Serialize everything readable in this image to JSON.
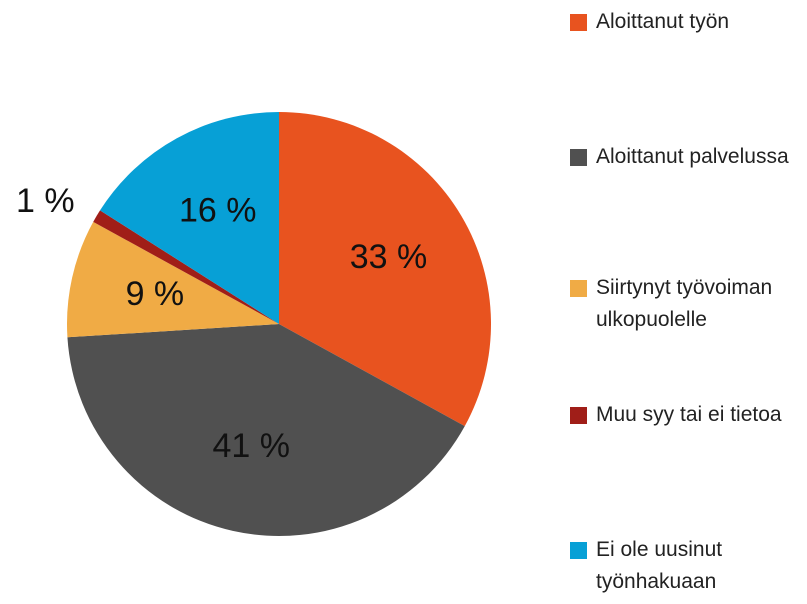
{
  "chart_data": {
    "type": "pie",
    "categories": [
      "Aloittanut työn",
      "Aloittanut palvelussa",
      "Siirtynyt työvoiman ulkopuolelle",
      "Muu syy tai ei tietoa",
      "Ei ole uusinut työnhakuaan"
    ],
    "values": [
      33,
      41,
      9,
      1,
      16
    ],
    "value_labels": [
      "33 %",
      "41 %",
      "9 %",
      "1 %",
      "16 %"
    ],
    "colors": [
      "#e8531f",
      "#505050",
      "#f0ab45",
      "#a01e18",
      "#07a0d6"
    ],
    "legend": "right"
  }
}
